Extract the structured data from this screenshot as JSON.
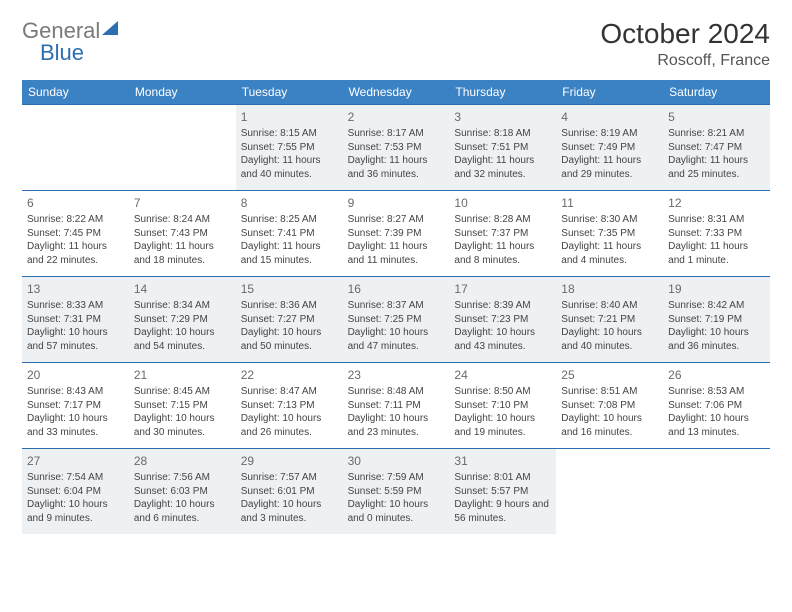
{
  "brand": {
    "part1": "General",
    "part2": "Blue"
  },
  "title": {
    "month": "October 2024",
    "location": "Roscoff, France"
  },
  "colors": {
    "header_bg": "#3b82c4",
    "rule": "#2b6fb0",
    "shade_bg": "#eef1f4",
    "text": "#444444",
    "num": "#6a6a6a"
  },
  "day_headers": [
    "Sunday",
    "Monday",
    "Tuesday",
    "Wednesday",
    "Thursday",
    "Friday",
    "Saturday"
  ],
  "weeks": [
    [
      {
        "n": "",
        "lines": []
      },
      {
        "n": "",
        "lines": []
      },
      {
        "n": "1",
        "lines": [
          "Sunrise: 8:15 AM",
          "Sunset: 7:55 PM",
          "Daylight: 11 hours and 40 minutes."
        ]
      },
      {
        "n": "2",
        "lines": [
          "Sunrise: 8:17 AM",
          "Sunset: 7:53 PM",
          "Daylight: 11 hours and 36 minutes."
        ]
      },
      {
        "n": "3",
        "lines": [
          "Sunrise: 8:18 AM",
          "Sunset: 7:51 PM",
          "Daylight: 11 hours and 32 minutes."
        ]
      },
      {
        "n": "4",
        "lines": [
          "Sunrise: 8:19 AM",
          "Sunset: 7:49 PM",
          "Daylight: 11 hours and 29 minutes."
        ]
      },
      {
        "n": "5",
        "lines": [
          "Sunrise: 8:21 AM",
          "Sunset: 7:47 PM",
          "Daylight: 11 hours and 25 minutes."
        ]
      }
    ],
    [
      {
        "n": "6",
        "lines": [
          "Sunrise: 8:22 AM",
          "Sunset: 7:45 PM",
          "Daylight: 11 hours and 22 minutes."
        ]
      },
      {
        "n": "7",
        "lines": [
          "Sunrise: 8:24 AM",
          "Sunset: 7:43 PM",
          "Daylight: 11 hours and 18 minutes."
        ]
      },
      {
        "n": "8",
        "lines": [
          "Sunrise: 8:25 AM",
          "Sunset: 7:41 PM",
          "Daylight: 11 hours and 15 minutes."
        ]
      },
      {
        "n": "9",
        "lines": [
          "Sunrise: 8:27 AM",
          "Sunset: 7:39 PM",
          "Daylight: 11 hours and 11 minutes."
        ]
      },
      {
        "n": "10",
        "lines": [
          "Sunrise: 8:28 AM",
          "Sunset: 7:37 PM",
          "Daylight: 11 hours and 8 minutes."
        ]
      },
      {
        "n": "11",
        "lines": [
          "Sunrise: 8:30 AM",
          "Sunset: 7:35 PM",
          "Daylight: 11 hours and 4 minutes."
        ]
      },
      {
        "n": "12",
        "lines": [
          "Sunrise: 8:31 AM",
          "Sunset: 7:33 PM",
          "Daylight: 11 hours and 1 minute."
        ]
      }
    ],
    [
      {
        "n": "13",
        "lines": [
          "Sunrise: 8:33 AM",
          "Sunset: 7:31 PM",
          "Daylight: 10 hours and 57 minutes."
        ]
      },
      {
        "n": "14",
        "lines": [
          "Sunrise: 8:34 AM",
          "Sunset: 7:29 PM",
          "Daylight: 10 hours and 54 minutes."
        ]
      },
      {
        "n": "15",
        "lines": [
          "Sunrise: 8:36 AM",
          "Sunset: 7:27 PM",
          "Daylight: 10 hours and 50 minutes."
        ]
      },
      {
        "n": "16",
        "lines": [
          "Sunrise: 8:37 AM",
          "Sunset: 7:25 PM",
          "Daylight: 10 hours and 47 minutes."
        ]
      },
      {
        "n": "17",
        "lines": [
          "Sunrise: 8:39 AM",
          "Sunset: 7:23 PM",
          "Daylight: 10 hours and 43 minutes."
        ]
      },
      {
        "n": "18",
        "lines": [
          "Sunrise: 8:40 AM",
          "Sunset: 7:21 PM",
          "Daylight: 10 hours and 40 minutes."
        ]
      },
      {
        "n": "19",
        "lines": [
          "Sunrise: 8:42 AM",
          "Sunset: 7:19 PM",
          "Daylight: 10 hours and 36 minutes."
        ]
      }
    ],
    [
      {
        "n": "20",
        "lines": [
          "Sunrise: 8:43 AM",
          "Sunset: 7:17 PM",
          "Daylight: 10 hours and 33 minutes."
        ]
      },
      {
        "n": "21",
        "lines": [
          "Sunrise: 8:45 AM",
          "Sunset: 7:15 PM",
          "Daylight: 10 hours and 30 minutes."
        ]
      },
      {
        "n": "22",
        "lines": [
          "Sunrise: 8:47 AM",
          "Sunset: 7:13 PM",
          "Daylight: 10 hours and 26 minutes."
        ]
      },
      {
        "n": "23",
        "lines": [
          "Sunrise: 8:48 AM",
          "Sunset: 7:11 PM",
          "Daylight: 10 hours and 23 minutes."
        ]
      },
      {
        "n": "24",
        "lines": [
          "Sunrise: 8:50 AM",
          "Sunset: 7:10 PM",
          "Daylight: 10 hours and 19 minutes."
        ]
      },
      {
        "n": "25",
        "lines": [
          "Sunrise: 8:51 AM",
          "Sunset: 7:08 PM",
          "Daylight: 10 hours and 16 minutes."
        ]
      },
      {
        "n": "26",
        "lines": [
          "Sunrise: 8:53 AM",
          "Sunset: 7:06 PM",
          "Daylight: 10 hours and 13 minutes."
        ]
      }
    ],
    [
      {
        "n": "27",
        "lines": [
          "Sunrise: 7:54 AM",
          "Sunset: 6:04 PM",
          "Daylight: 10 hours and 9 minutes."
        ]
      },
      {
        "n": "28",
        "lines": [
          "Sunrise: 7:56 AM",
          "Sunset: 6:03 PM",
          "Daylight: 10 hours and 6 minutes."
        ]
      },
      {
        "n": "29",
        "lines": [
          "Sunrise: 7:57 AM",
          "Sunset: 6:01 PM",
          "Daylight: 10 hours and 3 minutes."
        ]
      },
      {
        "n": "30",
        "lines": [
          "Sunrise: 7:59 AM",
          "Sunset: 5:59 PM",
          "Daylight: 10 hours and 0 minutes."
        ]
      },
      {
        "n": "31",
        "lines": [
          "Sunrise: 8:01 AM",
          "Sunset: 5:57 PM",
          "Daylight: 9 hours and 56 minutes."
        ]
      },
      {
        "n": "",
        "lines": []
      },
      {
        "n": "",
        "lines": []
      }
    ]
  ]
}
